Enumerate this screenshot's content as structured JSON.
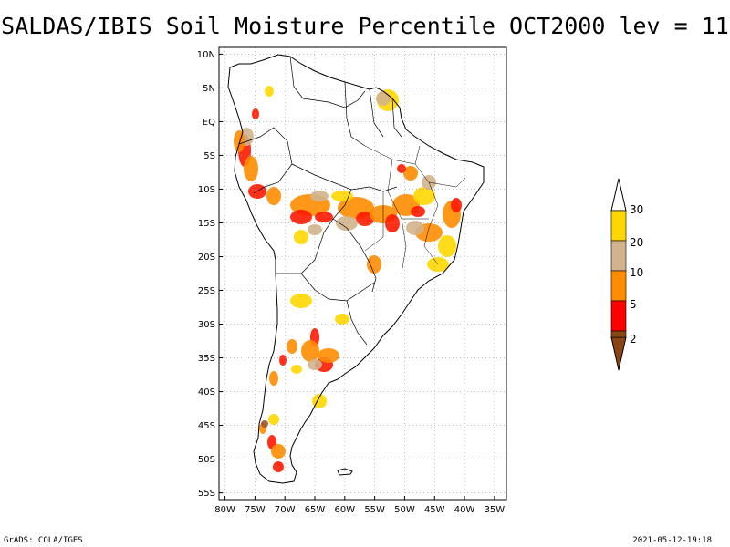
{
  "title": "SALDAS/IBIS Soil Moisture Percentile OCT2000 lev = 11",
  "footer": {
    "left": "GrADS: COLA/IGES",
    "right": "2021-05-12-19:18"
  },
  "map": {
    "lat_ticks": [
      "10N",
      "5N",
      "EQ",
      "5S",
      "10S",
      "15S",
      "20S",
      "25S",
      "30S",
      "35S",
      "40S",
      "45S",
      "50S",
      "55S"
    ],
    "lon_ticks": [
      "80W",
      "75W",
      "70W",
      "65W",
      "60W",
      "55W",
      "50W",
      "45W",
      "40W",
      "35W"
    ],
    "lon_range": [
      -81,
      -33
    ],
    "lat_range": [
      -56,
      11
    ],
    "grid": "dotted"
  },
  "legend": {
    "labels": [
      "2",
      "5",
      "10",
      "20",
      "30"
    ],
    "colors": [
      "#8b4513",
      "#ff0000",
      "#ff8c00",
      "#d2b48c",
      "#ffd700",
      "#ffffff"
    ]
  },
  "colors": {
    "brown": "#a0522d",
    "red": "#ff1a00",
    "orange": "#ff8c00",
    "tan": "#d2b48c",
    "yellow": "#ffd700"
  }
}
